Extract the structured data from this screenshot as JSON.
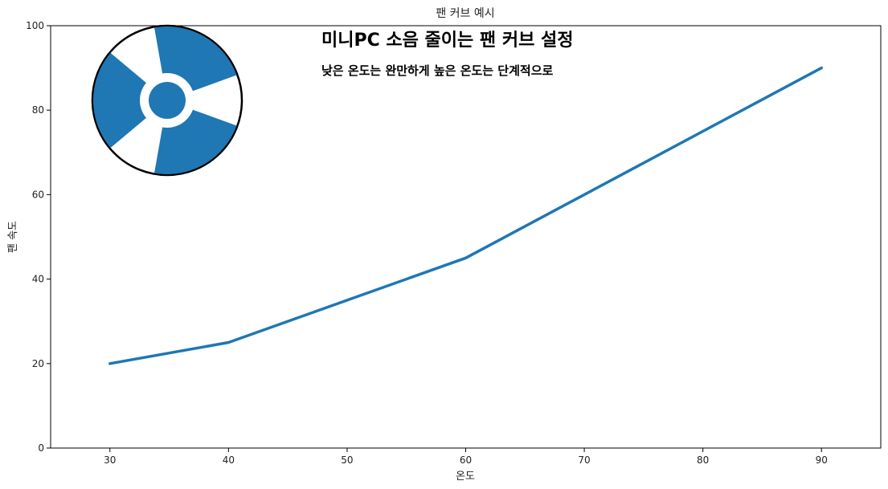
{
  "chart_data": {
    "type": "line",
    "title": "팬 커브 예시",
    "xlabel": "온도",
    "ylabel": "팬 속도",
    "xlim": [
      25,
      95
    ],
    "ylim": [
      0,
      100
    ],
    "xticks": [
      30,
      40,
      50,
      60,
      70,
      80,
      90
    ],
    "yticks": [
      0,
      20,
      40,
      60,
      80,
      100
    ],
    "grid": false,
    "series": [
      {
        "x": [
          30,
          40,
          50,
          60,
          70,
          80,
          90
        ],
        "values": [
          20,
          25,
          35,
          45,
          60,
          75,
          90
        ]
      }
    ],
    "annotations": {
      "main": "미니PC 소음 줄이는 팬 커브 설정",
      "sub": "낮은 온도는 완만하게  높은 온도는 단계적으로"
    },
    "colors": {
      "line": "#1f77b4",
      "fan_icon": "#1f77b4"
    },
    "icon": "fan-icon"
  }
}
